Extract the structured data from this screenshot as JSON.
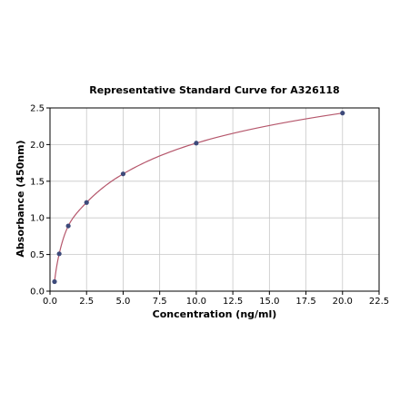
{
  "chart_data": {
    "type": "scatter",
    "title": "Representative Standard Curve for A326118",
    "xlabel": "Concentration (ng/ml)",
    "ylabel": "Absorbance (450nm)",
    "xlim": [
      0,
      22.5
    ],
    "ylim": [
      0,
      2.5
    ],
    "x_ticks": [
      "0.0",
      "2.5",
      "5.0",
      "7.5",
      "10.0",
      "12.5",
      "15.0",
      "17.5",
      "20.0",
      "22.5"
    ],
    "y_ticks": [
      "0.0",
      "0.5",
      "1.0",
      "1.5",
      "2.0",
      "2.5"
    ],
    "grid": true,
    "series": [
      {
        "x": [
          0.31,
          0.63,
          1.25,
          2.5,
          5.0,
          10.0,
          20.0
        ],
        "y": [
          0.13,
          0.51,
          0.89,
          1.21,
          1.6,
          2.02,
          2.43
        ],
        "fit": "curve"
      }
    ],
    "colors": {
      "points": "#3d4a7a",
      "curve": "#b5566b",
      "grid": "#c8c8c8"
    }
  }
}
